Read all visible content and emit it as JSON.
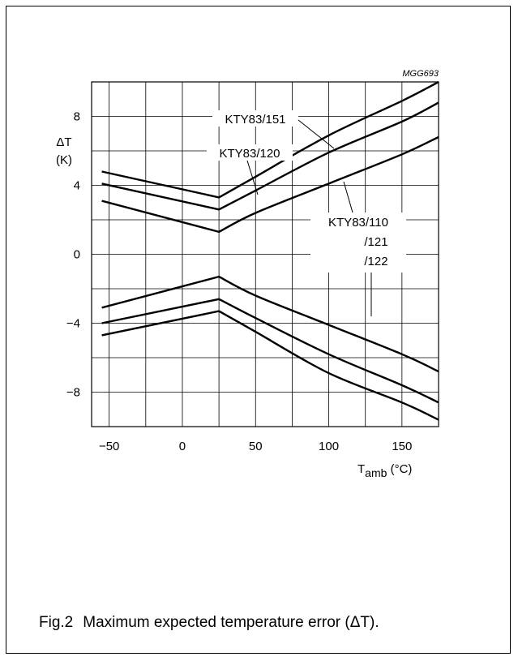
{
  "chart_data": {
    "type": "line",
    "code": "MGG693",
    "ylabel_symbol": "ΔT",
    "ylabel_unit": "(K)",
    "xlabel_main": "T",
    "xlabel_sub": "amb",
    "xlabel_unit": " (°C)",
    "xlim": [
      -62,
      175
    ],
    "ylim": [
      -10,
      10
    ],
    "x_ticks": [
      -50,
      0,
      50,
      100,
      150
    ],
    "x_tick_labels": [
      "−50",
      "0",
      "50",
      "100",
      "150"
    ],
    "y_ticks": [
      8,
      4,
      0,
      -4,
      -8
    ],
    "y_tick_labels": [
      "8",
      "4",
      "0",
      "−4",
      "−8"
    ],
    "grid": true,
    "series": [
      {
        "name": "KTY83/151",
        "x": [
          -55,
          25,
          50,
          100,
          150,
          175
        ],
        "y": [
          4.8,
          3.3,
          4.5,
          6.9,
          8.9,
          10.0
        ]
      },
      {
        "name": "KTY83/120",
        "x": [
          -55,
          25,
          50,
          100,
          150,
          175
        ],
        "y": [
          4.1,
          2.6,
          3.7,
          5.9,
          7.7,
          8.8
        ]
      },
      {
        "name": "KTY83/110 /121 /122",
        "x": [
          -55,
          25,
          50,
          100,
          150,
          175
        ],
        "y": [
          3.1,
          1.3,
          2.4,
          4.1,
          5.8,
          6.8
        ]
      },
      {
        "name": "KTY83/110 /121 /122",
        "x": [
          -55,
          25,
          50,
          100,
          150,
          175
        ],
        "y": [
          -3.1,
          -1.3,
          -2.4,
          -4.1,
          -5.8,
          -6.8
        ]
      },
      {
        "name": "KTY83/120",
        "x": [
          -55,
          25,
          50,
          100,
          150,
          175
        ],
        "y": [
          -4.0,
          -2.6,
          -3.7,
          -5.8,
          -7.6,
          -8.6
        ]
      },
      {
        "name": "KTY83/151",
        "x": [
          -55,
          25,
          50,
          100,
          150,
          175
        ],
        "y": [
          -4.7,
          -3.3,
          -4.5,
          -6.9,
          -8.6,
          -9.6
        ]
      }
    ],
    "annotations": [
      {
        "label_lines": [
          "KTY83/151"
        ],
        "series_index": 0
      },
      {
        "label_lines": [
          "KTY83/120"
        ],
        "series_index": 1
      },
      {
        "label_lines": [
          "KTY83/110",
          "/121",
          "/122"
        ],
        "series_index": 2
      }
    ]
  },
  "caption": {
    "fig": "Fig.2",
    "text": "Maximum expected temperature error (ΔT)."
  }
}
